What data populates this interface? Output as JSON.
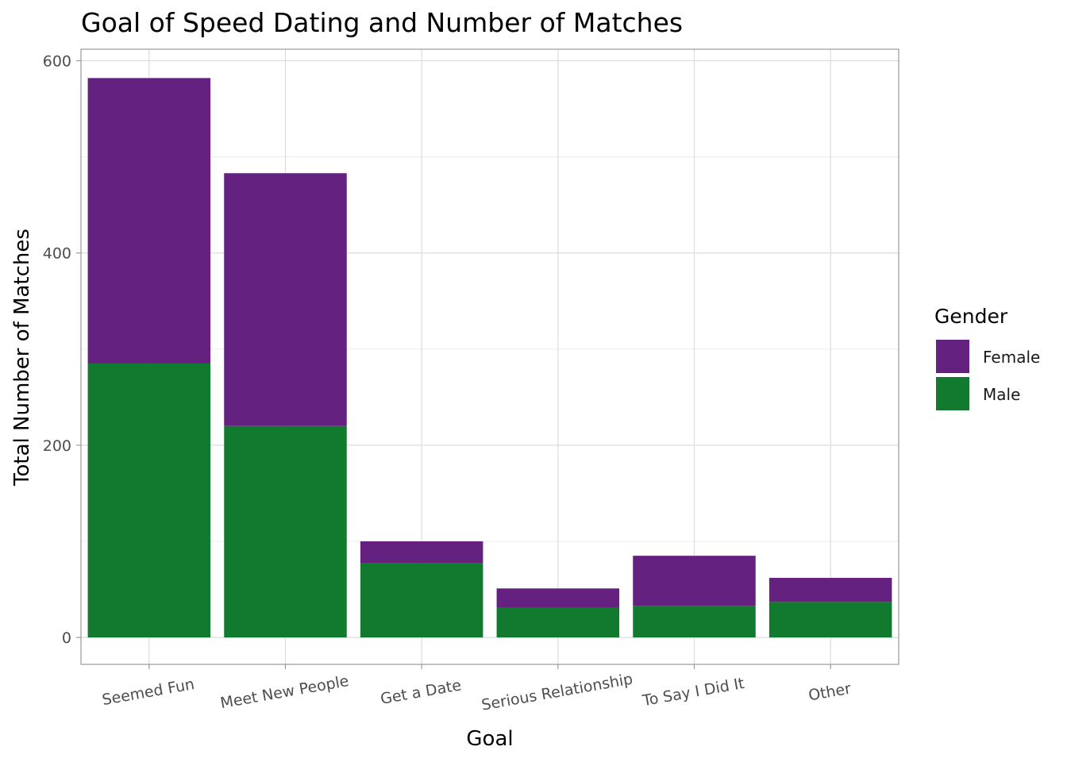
{
  "chart_data": {
    "type": "bar",
    "stacked": true,
    "title": "Goal of Speed Dating and Number of Matches",
    "xlabel": "Goal",
    "ylabel": "Total Number of Matches",
    "categories": [
      "Seemed Fun",
      "Meet New People",
      "Get a Date",
      "Serious Relationship",
      "To Say I Did It",
      "Other"
    ],
    "series": [
      {
        "name": "Male",
        "color": "#117a2e",
        "values": [
          285,
          220,
          77,
          31,
          33,
          37
        ]
      },
      {
        "name": "Female",
        "color": "#65217f",
        "values": [
          297,
          263,
          23,
          20,
          52,
          25
        ]
      }
    ],
    "ylim": [
      -28,
      612
    ],
    "yticks": [
      0,
      200,
      400,
      600
    ],
    "grid": true,
    "legend": {
      "title": "Gender",
      "position": "right",
      "order": [
        "Female",
        "Male"
      ]
    }
  }
}
